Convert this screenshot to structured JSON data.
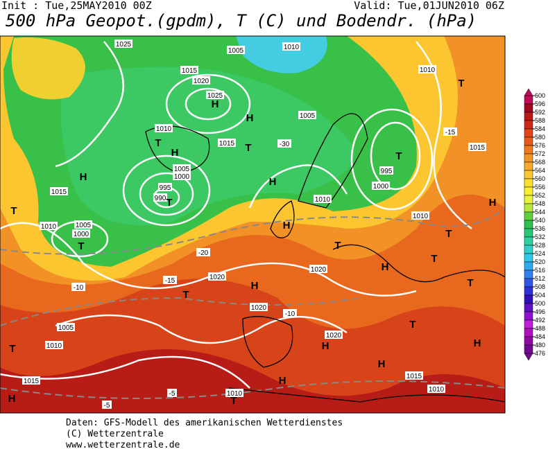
{
  "header": {
    "init": "Init : Tue,25MAY2010 00Z",
    "valid": "Valid: Tue,01JUN2010 06Z",
    "title": "500 hPa Geopot.(gpdm), T (C) und Bodendr. (hPa)"
  },
  "map": {
    "labels": [
      "1025",
      "1005",
      "1010",
      "1015",
      "1020",
      "1025",
      "H",
      "H",
      "1005",
      "1010",
      "T",
      "H",
      "1015",
      "-30",
      "T",
      "1005",
      "1000",
      "995",
      "990",
      "T",
      "T",
      "995",
      "1000",
      "H",
      "1010",
      "1005",
      "1000",
      "T",
      "1010",
      "1015",
      "H",
      "T",
      "H",
      "T",
      "1020",
      "1020",
      "H",
      "T",
      "1020",
      "1005",
      "1010",
      "T",
      "H",
      "1020",
      "1015",
      "H",
      "1010",
      "T",
      "1015",
      "1010",
      "H",
      "T",
      "H",
      "T",
      "H",
      "T",
      "1010",
      "1015",
      "-15",
      "1010",
      "H",
      "-10",
      "-15",
      "-20",
      "-10",
      "-5",
      "-5",
      "H",
      "T",
      "T"
    ]
  },
  "colorbar": {
    "ticks": [
      600,
      596,
      592,
      588,
      584,
      580,
      576,
      572,
      568,
      564,
      560,
      556,
      552,
      548,
      544,
      540,
      536,
      532,
      528,
      524,
      520,
      516,
      512,
      508,
      504,
      500,
      496,
      492,
      488,
      484,
      480,
      476
    ],
    "colors": [
      "#c00a5a",
      "#a00820",
      "#b81818",
      "#d02818",
      "#e04418",
      "#e85a1a",
      "#f0781e",
      "#f49424",
      "#f8ac2a",
      "#fcc830",
      "#fce030",
      "#f8f030",
      "#e8f440",
      "#b8e840",
      "#60d040",
      "#30c050",
      "#28c878",
      "#30d0a0",
      "#30d0c8",
      "#30c8e8",
      "#30a8f0",
      "#3080f0",
      "#3058e8",
      "#3030d8",
      "#3010b8",
      "#6010c0",
      "#9010d0",
      "#c020d8",
      "#b010c0",
      "#9008a8",
      "#700890"
    ]
  },
  "footer": {
    "lines": [
      "Daten: GFS-Modell des amerikanischen Wetterdienstes",
      "(C) Wetterzentrale",
      "www.wetterzentrale.de"
    ]
  }
}
